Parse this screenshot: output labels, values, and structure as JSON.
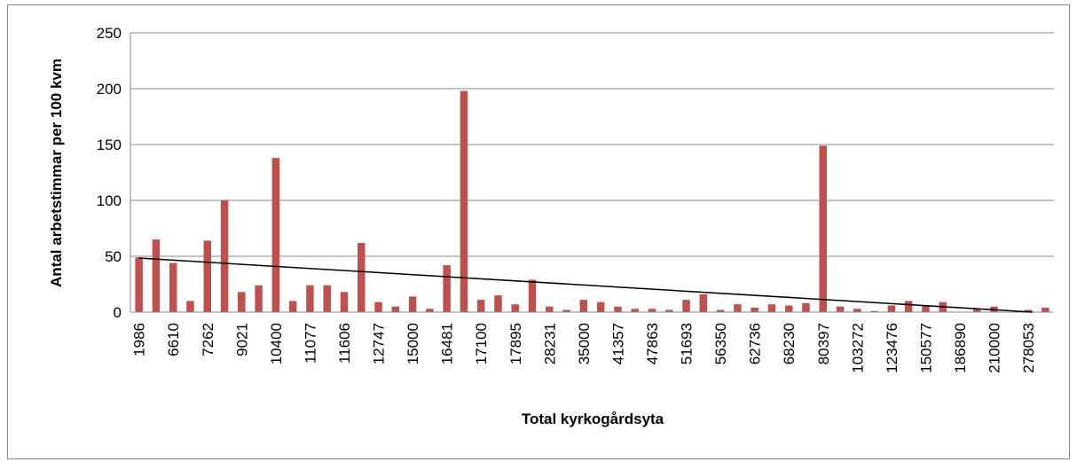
{
  "chart_data": {
    "type": "bar",
    "x_label": "Total kyrkogårdsyta",
    "y_label": "Antal arbetstimmar per 100 kvm",
    "categories": [
      "1986",
      null,
      "6610",
      null,
      "7262",
      null,
      "9021",
      null,
      "10400",
      null,
      "11077",
      null,
      "11606",
      null,
      "12747",
      null,
      "15000",
      null,
      "16481",
      null,
      "17100",
      null,
      "17895",
      null,
      "28231",
      null,
      "35000",
      null,
      "41357",
      null,
      "47863",
      null,
      "51693",
      null,
      "56350",
      null,
      "62736",
      null,
      "68230",
      null,
      "80397",
      null,
      "103272",
      null,
      "123476",
      null,
      "150577",
      null,
      "186890",
      null,
      "210000",
      null,
      "278053",
      null
    ],
    "values": [
      49,
      65,
      44,
      10,
      64,
      100,
      18,
      24,
      138,
      10,
      24,
      24,
      18,
      62,
      9,
      5,
      14,
      3,
      42,
      198,
      11,
      15,
      7,
      29,
      5,
      2,
      11,
      9,
      5,
      3,
      3,
      2,
      11,
      16,
      2,
      7,
      4,
      7,
      6,
      8,
      149,
      5,
      3,
      1,
      6,
      10,
      6,
      9,
      0,
      3,
      5,
      0,
      2,
      4
    ],
    "color": "#c0504d",
    "trendline": "linear",
    "ylim": [
      0,
      250
    ],
    "yticks": [
      0,
      50,
      100,
      150,
      200,
      250
    ],
    "grid": true
  }
}
